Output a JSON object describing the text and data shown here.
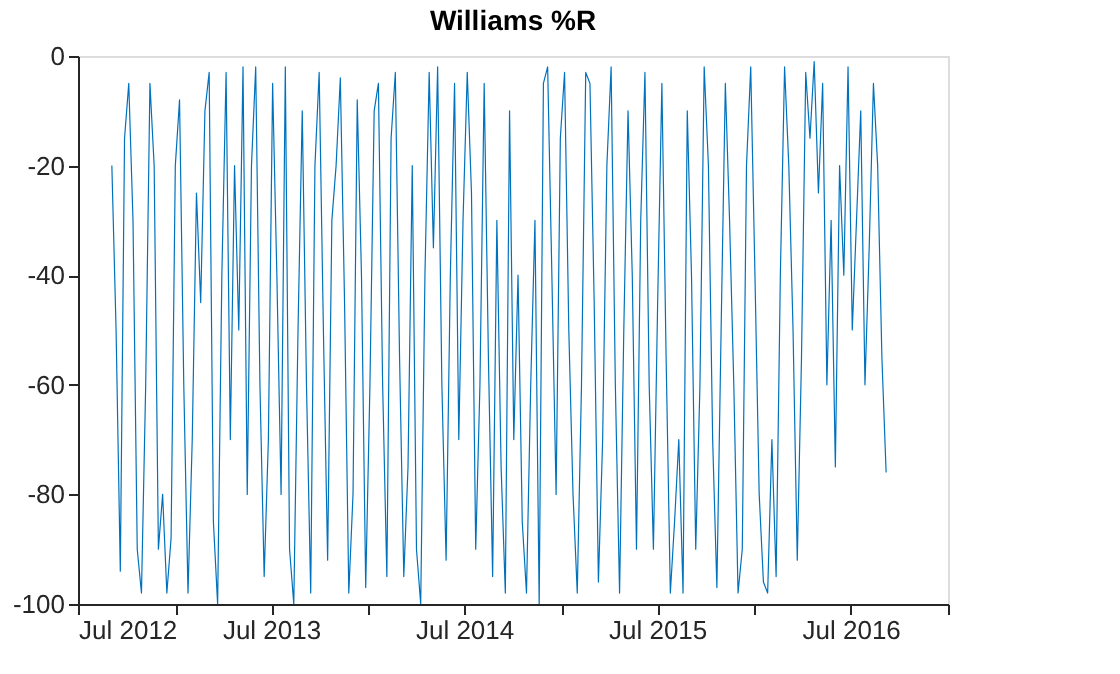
{
  "chart_data": {
    "type": "line",
    "title": "Williams %R",
    "xlim": [
      "2012-07-01",
      "2017-01-01"
    ],
    "xticks": [
      {
        "value": "2012-07-01",
        "label": "Jul 2012"
      },
      {
        "value": "2013-01-01",
        "label": null
      },
      {
        "value": "2013-07-01",
        "label": "Jul 2013"
      },
      {
        "value": "2014-01-01",
        "label": null
      },
      {
        "value": "2014-07-01",
        "label": "Jul 2014"
      },
      {
        "value": "2015-01-01",
        "label": null
      },
      {
        "value": "2015-07-01",
        "label": "Jul 2015"
      },
      {
        "value": "2016-01-01",
        "label": null
      },
      {
        "value": "2016-07-01",
        "label": "Jul 2016"
      },
      {
        "value": "2017-01-01",
        "label": null
      }
    ],
    "ylim": [
      -100,
      0
    ],
    "yticks": [
      -100,
      -80,
      -60,
      -40,
      -20,
      0
    ],
    "grid": false,
    "line_style": "solid",
    "x": [
      "2012-09-03",
      "2012-09-11",
      "2012-09-19",
      "2012-09-27",
      "2012-10-05",
      "2012-10-13",
      "2012-10-21",
      "2012-10-29",
      "2012-11-06",
      "2012-11-14",
      "2012-11-22",
      "2012-11-30",
      "2012-12-08",
      "2012-12-16",
      "2012-12-24",
      "2013-01-01",
      "2013-01-09",
      "2013-01-17",
      "2013-01-25",
      "2013-02-02",
      "2013-02-10",
      "2013-02-18",
      "2013-02-26",
      "2013-03-06",
      "2013-03-14",
      "2013-03-22",
      "2013-03-30",
      "2013-04-07",
      "2013-04-15",
      "2013-04-23",
      "2013-05-01",
      "2013-05-09",
      "2013-05-17",
      "2013-05-25",
      "2013-06-02",
      "2013-06-10",
      "2013-06-18",
      "2013-06-26",
      "2013-07-04",
      "2013-07-12",
      "2013-07-20",
      "2013-07-28",
      "2013-08-05",
      "2013-08-13",
      "2013-08-21",
      "2013-08-29",
      "2013-09-06",
      "2013-09-14",
      "2013-09-22",
      "2013-09-30",
      "2013-10-08",
      "2013-10-16",
      "2013-10-24",
      "2013-11-01",
      "2013-11-09",
      "2013-11-17",
      "2013-11-25",
      "2013-12-03",
      "2013-12-11",
      "2013-12-19",
      "2013-12-27",
      "2014-01-04",
      "2014-01-12",
      "2014-01-20",
      "2014-01-28",
      "2014-02-05",
      "2014-02-13",
      "2014-02-21",
      "2014-03-01",
      "2014-03-09",
      "2014-03-17",
      "2014-03-25",
      "2014-04-02",
      "2014-04-10",
      "2014-04-18",
      "2014-04-26",
      "2014-05-04",
      "2014-05-12",
      "2014-05-20",
      "2014-05-28",
      "2014-06-05",
      "2014-06-13",
      "2014-06-21",
      "2014-06-29",
      "2014-07-07",
      "2014-07-15",
      "2014-07-23",
      "2014-07-31",
      "2014-08-08",
      "2014-08-16",
      "2014-08-24",
      "2014-09-01",
      "2014-09-09",
      "2014-09-17",
      "2014-09-25",
      "2014-10-03",
      "2014-10-11",
      "2014-10-19",
      "2014-10-27",
      "2014-11-04",
      "2014-11-12",
      "2014-11-20",
      "2014-11-28",
      "2014-12-06",
      "2014-12-14",
      "2014-12-22",
      "2014-12-30",
      "2015-01-07",
      "2015-01-15",
      "2015-01-23",
      "2015-01-31",
      "2015-02-08",
      "2015-02-16",
      "2015-02-24",
      "2015-03-04",
      "2015-03-12",
      "2015-03-20",
      "2015-03-28",
      "2015-04-05",
      "2015-04-13",
      "2015-04-21",
      "2015-04-29",
      "2015-05-07",
      "2015-05-15",
      "2015-05-23",
      "2015-05-31",
      "2015-06-08",
      "2015-06-16",
      "2015-06-24",
      "2015-07-02",
      "2015-07-10",
      "2015-07-18",
      "2015-07-26",
      "2015-08-03",
      "2015-08-11",
      "2015-08-19",
      "2015-08-27",
      "2015-09-04",
      "2015-09-12",
      "2015-09-20",
      "2015-09-28",
      "2015-10-06",
      "2015-10-14",
      "2015-10-22",
      "2015-10-30",
      "2015-11-07",
      "2015-11-15",
      "2015-11-23",
      "2015-12-01",
      "2015-12-09",
      "2015-12-17",
      "2015-12-25",
      "2016-01-02",
      "2016-01-10",
      "2016-01-18",
      "2016-01-26",
      "2016-02-03",
      "2016-02-11",
      "2016-02-19",
      "2016-02-27",
      "2016-03-06",
      "2016-03-14",
      "2016-03-22",
      "2016-03-30",
      "2016-04-07",
      "2016-04-15",
      "2016-04-23",
      "2016-05-01",
      "2016-05-09",
      "2016-05-17",
      "2016-05-25",
      "2016-06-02",
      "2016-06-10",
      "2016-06-18",
      "2016-06-26",
      "2016-07-04",
      "2016-07-12",
      "2016-07-20",
      "2016-07-28",
      "2016-08-05",
      "2016-08-13",
      "2016-08-21",
      "2016-08-29",
      "2016-09-06"
    ],
    "series": [
      {
        "color": "#0072bd",
        "values": [
          -20,
          -50,
          -94,
          -15,
          -5,
          -30,
          -90,
          -98,
          -60,
          -5,
          -20,
          -90,
          -80,
          -98,
          -88,
          -20,
          -8,
          -60,
          -98,
          -70,
          -25,
          -45,
          -10,
          -3,
          -85,
          -100,
          -40,
          -3,
          -70,
          -20,
          -50,
          -2,
          -80,
          -20,
          -2,
          -60,
          -95,
          -70,
          -5,
          -40,
          -80,
          -2,
          -90,
          -100,
          -50,
          -10,
          -60,
          -98,
          -20,
          -3,
          -50,
          -92,
          -30,
          -20,
          -4,
          -45,
          -98,
          -80,
          -8,
          -40,
          -97,
          -60,
          -10,
          -5,
          -60,
          -95,
          -15,
          -3,
          -55,
          -95,
          -75,
          -20,
          -90,
          -100,
          -40,
          -3,
          -35,
          -2,
          -60,
          -92,
          -40,
          -5,
          -70,
          -30,
          -3,
          -25,
          -90,
          -60,
          -5,
          -55,
          -95,
          -30,
          -75,
          -98,
          -10,
          -70,
          -40,
          -85,
          -98,
          -60,
          -30,
          -100,
          -5,
          -2,
          -40,
          -80,
          -15,
          -3,
          -50,
          -80,
          -98,
          -60,
          -3,
          -5,
          -45,
          -96,
          -70,
          -20,
          -2,
          -60,
          -98,
          -50,
          -10,
          -40,
          -90,
          -30,
          -3,
          -60,
          -90,
          -45,
          -5,
          -55,
          -98,
          -85,
          -70,
          -98,
          -10,
          -40,
          -90,
          -60,
          -2,
          -20,
          -70,
          -97,
          -50,
          -5,
          -30,
          -60,
          -98,
          -90,
          -20,
          -2,
          -40,
          -80,
          -96,
          -98,
          -70,
          -95,
          -40,
          -2,
          -20,
          -50,
          -92,
          -55,
          -3,
          -15,
          -1,
          -25,
          -5,
          -60,
          -30,
          -75,
          -20,
          -40,
          -2,
          -50,
          -30,
          -10,
          -60,
          -35,
          -5,
          -20,
          -55,
          -76
        ]
      }
    ]
  }
}
